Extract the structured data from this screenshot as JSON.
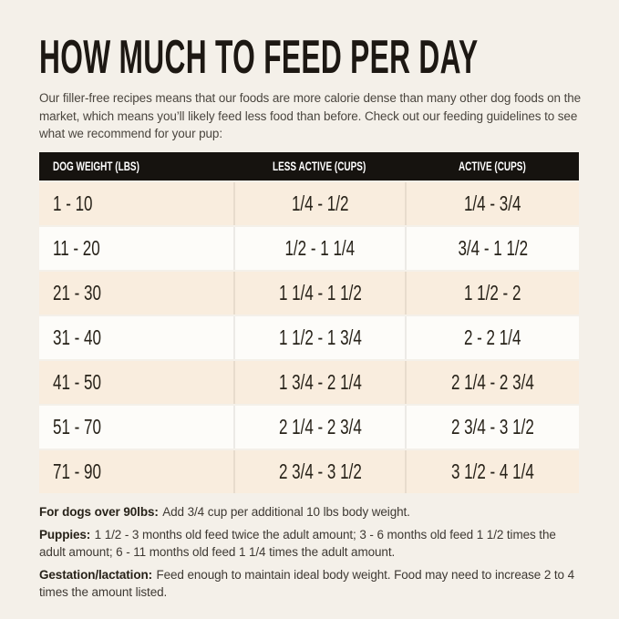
{
  "header": {
    "title": "HOW MUCH TO FEED PER DAY",
    "intro": "Our filler-free recipes means that our foods are more calorie dense than many other dog foods on the market, which means you’ll likely feed less food than before. Check out our feeding guidelines to see what we recommend for your pup:"
  },
  "table": {
    "columns": [
      "DOG WEIGHT (LBS)",
      "LESS ACTIVE (CUPS)",
      "ACTIVE (CUPS)"
    ],
    "rows": [
      {
        "weight": "1 - 10",
        "less_active": "1/4 - 1/2",
        "active": "1/4 - 3/4"
      },
      {
        "weight": "11 - 20",
        "less_active": "1/2 - 1 1/4",
        "active": "3/4 - 1 1/2"
      },
      {
        "weight": "21 - 30",
        "less_active": "1 1/4 - 1 1/2",
        "active": "1 1/2 - 2"
      },
      {
        "weight": "31 - 40",
        "less_active": "1 1/2 - 1 3/4",
        "active": "2 - 2 1/4"
      },
      {
        "weight": "41 - 50",
        "less_active": "1 3/4 - 2 1/4",
        "active": "2 1/4 - 2 3/4"
      },
      {
        "weight": "51 - 70",
        "less_active": "2 1/4 - 2 3/4",
        "active": "2 3/4 - 3 1/2"
      },
      {
        "weight": "71 - 90",
        "less_active": "2 3/4 - 3 1/2",
        "active": "3 1/2 - 4 1/4"
      }
    ]
  },
  "notes": [
    {
      "label": "For dogs over 90lbs:",
      "text": "Add 3/4 cup per additional 10 lbs body weight."
    },
    {
      "label": "Puppies:",
      "text": "1 1/2 - 3 months old feed twice the adult amount; 3 - 6 months old feed 1 1/2 times the adult amount; 6 - 11 months old feed 1 1/4 times the adult amount."
    },
    {
      "label": "Gestation/lactation:",
      "text": "Feed enough to maintain ideal body weight. Food may need to increase 2 to 4 times the amount listed."
    }
  ],
  "colors": {
    "page_background": "#f4f0e9",
    "row_cream": "#f9edde",
    "row_white": "#fdfcf9",
    "header_bar": "#16130f",
    "header_text": "#ffffff",
    "title_text": "#1d1813",
    "body_text": "#3e3933"
  }
}
